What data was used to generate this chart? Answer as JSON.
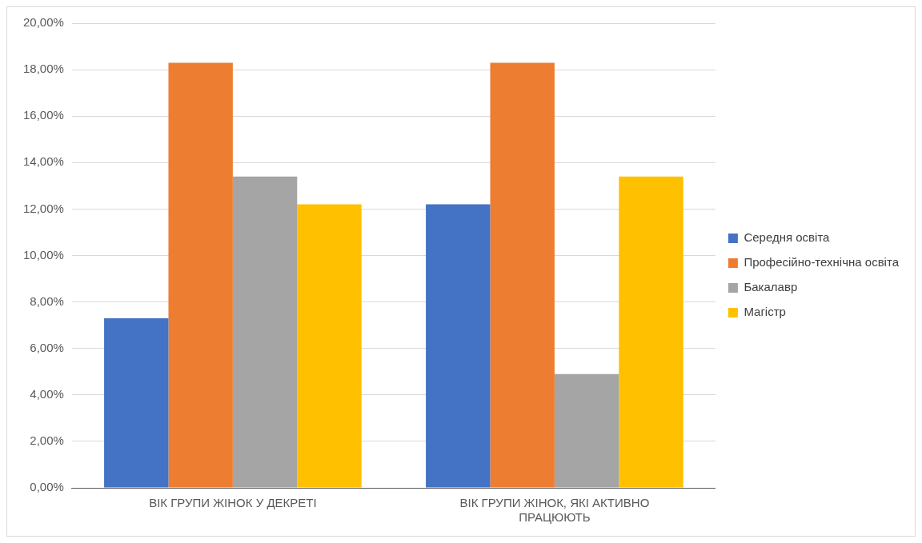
{
  "chart_data": {
    "type": "bar",
    "categories": [
      "ВІК ГРУПИ ЖІНОК У ДЕКРЕТІ",
      "ВІК ГРУПИ ЖІНОК, ЯКІ АКТИВНО ПРАЦЮЮТЬ"
    ],
    "series": [
      {
        "name": "Середня освіта",
        "color": "#4472c4",
        "values": [
          7.3,
          12.2
        ]
      },
      {
        "name": "Професійно-технічна освіта",
        "color": "#ed7d31",
        "values": [
          18.3,
          18.3
        ]
      },
      {
        "name": "Бакалавр",
        "color": "#a5a5a5",
        "values": [
          13.4,
          4.9
        ]
      },
      {
        "name": "Магістр",
        "color": "#ffc000",
        "values": [
          12.2,
          13.4
        ]
      }
    ],
    "ylim": [
      0,
      20
    ],
    "yticks": [
      {
        "value": 0,
        "label": "0,00%"
      },
      {
        "value": 2,
        "label": "2,00%"
      },
      {
        "value": 4,
        "label": "4,00%"
      },
      {
        "value": 6,
        "label": "6,00%"
      },
      {
        "value": 8,
        "label": "8,00%"
      },
      {
        "value": 10,
        "label": "10,00%"
      },
      {
        "value": 12,
        "label": "12,00%"
      },
      {
        "value": 14,
        "label": "14,00%"
      },
      {
        "value": 16,
        "label": "16,00%"
      },
      {
        "value": 18,
        "label": "18,00%"
      },
      {
        "value": 20,
        "label": "20,00%"
      }
    ],
    "grid": "y",
    "legend": "right"
  }
}
